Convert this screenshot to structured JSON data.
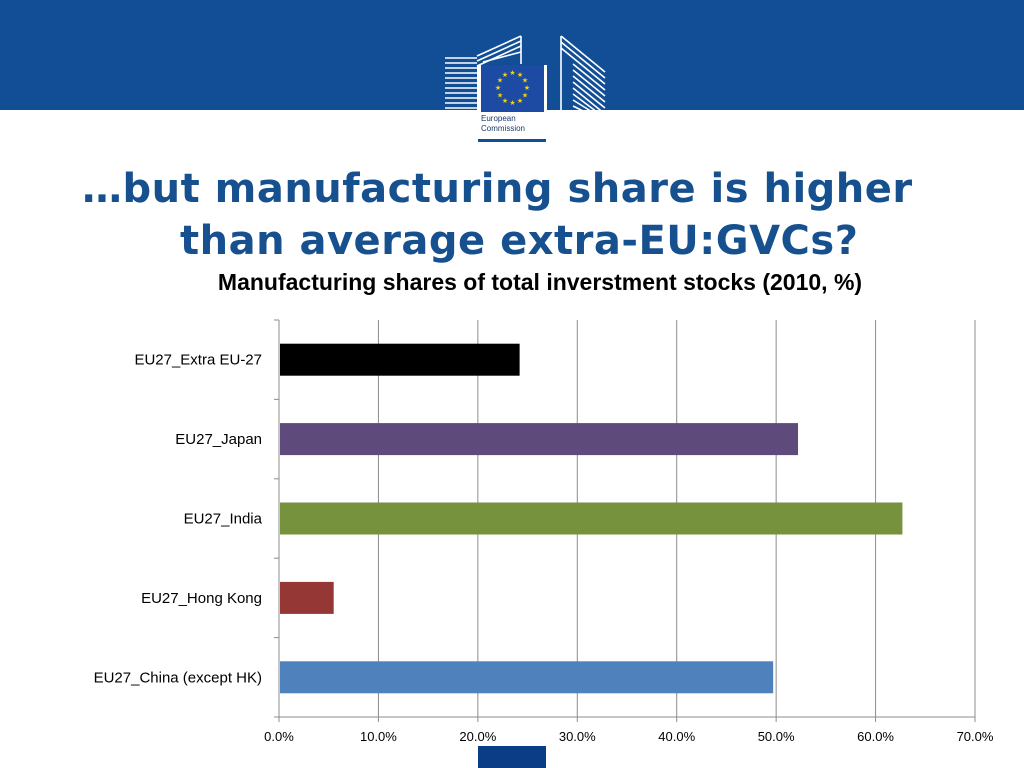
{
  "logo": {
    "org_line1": "European",
    "org_line2": "Commission"
  },
  "slide": {
    "title_line1": "…but manufacturing share is higher",
    "title_line2": "than average extra-EU:GVCs?"
  },
  "colors": {
    "header_band": "#114e95",
    "title_text": "#17508e"
  },
  "chart_data": {
    "type": "bar",
    "orientation": "horizontal",
    "title": "Manufacturing shares of total inverstment stocks (2010, %)",
    "categories": [
      "EU27_Extra EU-27",
      "EU27_Japan",
      "EU27_India",
      "EU27_Hong Kong",
      "EU27_China (except HK)"
    ],
    "values": [
      24.2,
      52.2,
      62.7,
      5.5,
      49.7
    ],
    "bar_colors": [
      "#000000",
      "#5e4a7b",
      "#77923c",
      "#953735",
      "#4f81bd"
    ],
    "xlim": [
      0,
      70
    ],
    "xticks": [
      "0.0%",
      "10.0%",
      "20.0%",
      "30.0%",
      "40.0%",
      "50.0%",
      "60.0%",
      "70.0%"
    ],
    "xlabel": "",
    "ylabel": "",
    "grid": true,
    "legend": "none"
  }
}
